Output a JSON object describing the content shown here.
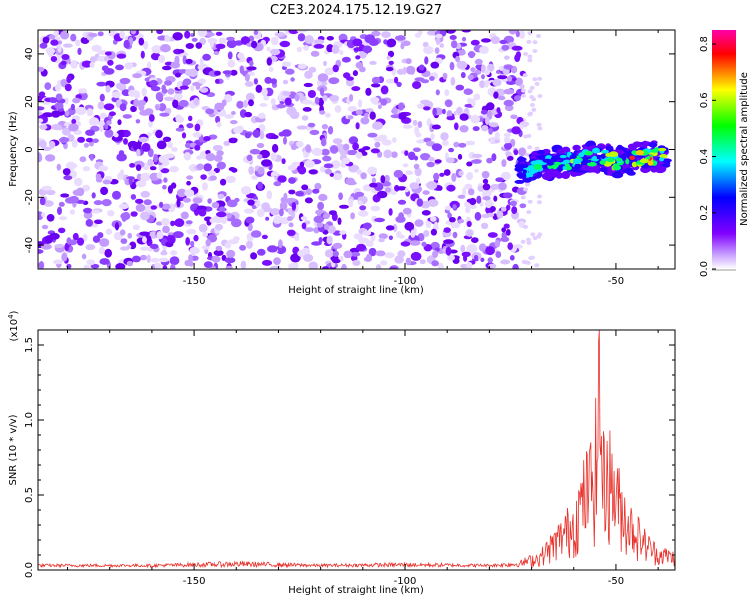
{
  "title": "C2E3.2024.175.12.19.G27",
  "chart_data": [
    {
      "type": "heatmap",
      "xlabel": "Height of straight line (km)",
      "ylabel": "Frequency (Hz)",
      "xlim": [
        -187,
        -36
      ],
      "ylim": [
        -50,
        50
      ],
      "x_ticks": [
        -150,
        -100,
        -50
      ],
      "y_ticks": [
        -40,
        -20,
        0,
        20,
        40
      ],
      "noise_region": {
        "x": [
          -187,
          -72
        ],
        "y": [
          -50,
          50
        ]
      },
      "signal_track": {
        "x": [
          -73,
          -70,
          -66,
          -62,
          -58,
          -54,
          -50,
          -46,
          -42,
          -38
        ],
        "y": [
          -9,
          -8,
          -6,
          -5,
          -4,
          -3,
          -5,
          -4,
          -3,
          -2
        ],
        "level": [
          0.35,
          0.4,
          0.45,
          0.5,
          0.55,
          0.6,
          0.7,
          0.8,
          0.75,
          0.6
        ]
      },
      "colorbar": {
        "label": "Normalized spectral amplitude",
        "range": [
          0.0,
          0.85
        ],
        "ticks": [
          "0.0",
          "0.2",
          "0.4",
          "0.6",
          "0.8"
        ],
        "colors": [
          "#ffffff",
          "#c8a0ff",
          "#8000ff",
          "#0000ff",
          "#00ffff",
          "#00ff00",
          "#ffff00",
          "#ff0000",
          "#ff00aa"
        ]
      }
    },
    {
      "type": "line",
      "xlabel": "Height of straight line (km)",
      "ylabel": "SNR (10 * v/v)",
      "y_scale_label": "(x10",
      "y_scale_exp": "4",
      "xlim": [
        -187,
        -36
      ],
      "ylim": [
        0,
        1.6
      ],
      "x_ticks": [
        -150,
        -100,
        -50
      ],
      "y_ticks": [
        "0.0",
        "0.5",
        "1.0",
        "1.5"
      ],
      "line_color": "#e8302a",
      "series_envelope": {
        "x": [
          -187,
          -160,
          -140,
          -120,
          -100,
          -80,
          -73,
          -68,
          -64,
          -60,
          -57,
          -55,
          -54,
          -53,
          -52,
          -50,
          -47,
          -45,
          -43,
          -40,
          -38,
          -36
        ],
        "y": [
          0.04,
          0.04,
          0.06,
          0.04,
          0.05,
          0.04,
          0.06,
          0.12,
          0.28,
          0.45,
          0.75,
          0.9,
          1.6,
          0.85,
          0.95,
          0.7,
          0.45,
          0.35,
          0.25,
          0.15,
          0.14,
          0.12
        ]
      }
    }
  ]
}
